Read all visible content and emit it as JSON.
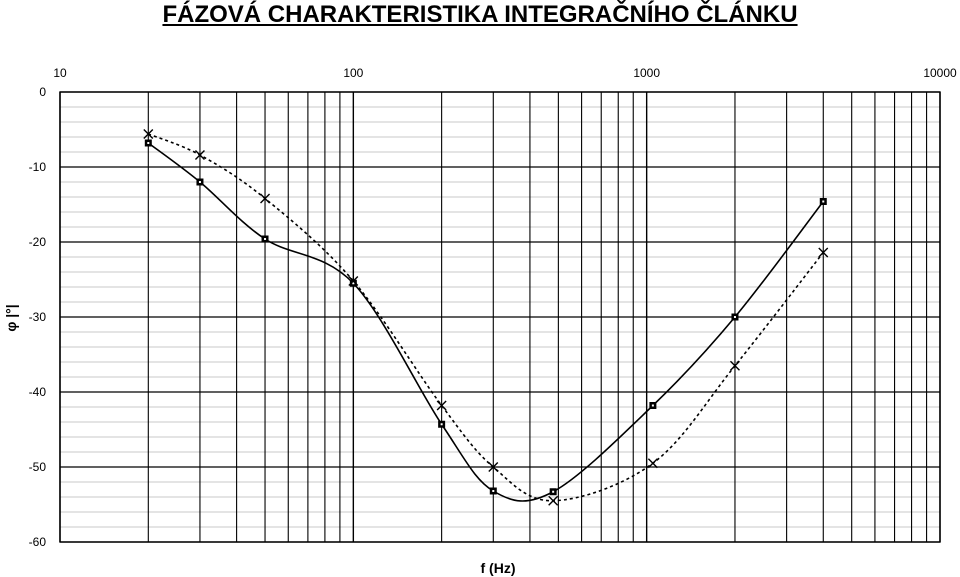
{
  "chart_data": {
    "type": "line",
    "title": "FÁZOVÁ CHARAKTERISTIKA INTEGRAČNÍHO ČLÁNKU",
    "xlabel": "f (Hz)",
    "ylabel": "φ |°|",
    "x_scale": "log",
    "xlim": [
      10,
      10000
    ],
    "ylim": [
      -60,
      0
    ],
    "x_ticks": [
      "10",
      "100",
      "1000",
      "10000"
    ],
    "y_ticks": [
      "0",
      "-10",
      "-20",
      "-30",
      "-40",
      "-50",
      "-60"
    ],
    "grid": true,
    "legend": "none",
    "series": [
      {
        "style": "solid",
        "marker": "square",
        "color": "#000000",
        "points": [
          [
            20,
            -6.8
          ],
          [
            30,
            -12
          ],
          [
            50,
            -19.6
          ],
          [
            100,
            -25.5
          ],
          [
            200,
            -44.3
          ],
          [
            300,
            -53.2
          ],
          [
            480,
            -53.3
          ],
          [
            1050,
            -41.8
          ],
          [
            2000,
            -30
          ],
          [
            4000,
            -14.6
          ]
        ]
      },
      {
        "style": "dashed",
        "marker": "x",
        "color": "#000000",
        "points": [
          [
            20,
            -5.6
          ],
          [
            30,
            -8.4
          ],
          [
            50,
            -14.2
          ],
          [
            100,
            -25.2
          ],
          [
            200,
            -41.8
          ],
          [
            300,
            -50
          ],
          [
            480,
            -54.5
          ],
          [
            1050,
            -49.5
          ],
          [
            2000,
            -36.5
          ],
          [
            4000,
            -21.4
          ]
        ]
      }
    ]
  }
}
